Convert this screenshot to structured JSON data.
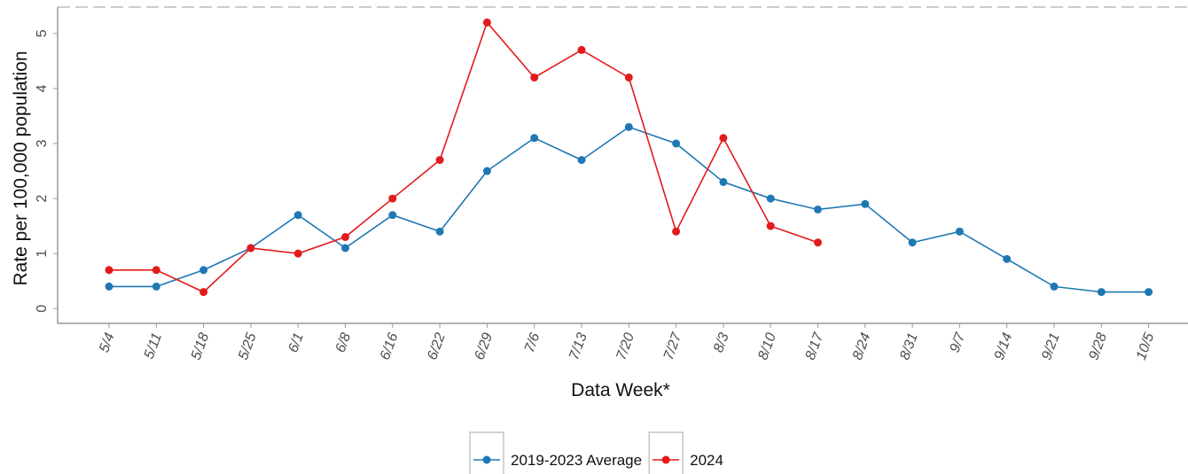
{
  "chart_data": {
    "type": "line",
    "x_label": "Data Week*",
    "y_label": "Rate per 100,000 population",
    "categories": [
      "5/4",
      "5/11",
      "5/18",
      "5/25",
      "6/1",
      "6/8",
      "6/16",
      "6/22",
      "6/29",
      "7/6",
      "7/13",
      "7/20",
      "7/27",
      "8/3",
      "8/10",
      "8/17",
      "8/24",
      "8/31",
      "9/7",
      "9/14",
      "9/21",
      "9/28",
      "10/5"
    ],
    "series": [
      {
        "name": "2019-2023 Average",
        "color": "#1f78b4",
        "values": [
          0.4,
          0.4,
          0.7,
          1.1,
          1.7,
          1.1,
          1.7,
          1.4,
          2.5,
          3.1,
          2.7,
          3.3,
          3.0,
          2.3,
          2.0,
          1.8,
          1.9,
          1.2,
          1.4,
          0.9,
          0.4,
          0.3,
          0.3
        ]
      },
      {
        "name": "2024",
        "color": "#e31a1c",
        "values": [
          0.7,
          0.7,
          0.3,
          1.1,
          1.0,
          1.3,
          2.0,
          2.7,
          5.2,
          4.2,
          4.7,
          4.2,
          1.4,
          3.1,
          1.5,
          1.2,
          null,
          null,
          null,
          null,
          null,
          null,
          null
        ]
      }
    ],
    "ylim": [
      -0.27,
      5.48
    ],
    "yticks": [
      0,
      1,
      2,
      3,
      4,
      5
    ]
  }
}
